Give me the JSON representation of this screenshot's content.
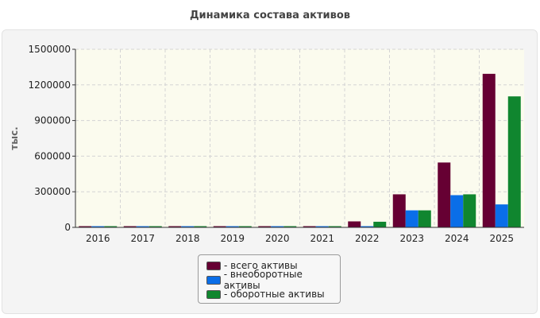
{
  "chart_data": {
    "type": "bar",
    "title": "Динамика состава активов",
    "ylabel": "тыс.",
    "xlabel": "",
    "categories": [
      "2016",
      "2017",
      "2018",
      "2019",
      "2020",
      "2021",
      "2022",
      "2023",
      "2024",
      "2025"
    ],
    "ylim": [
      0,
      1500000
    ],
    "yticks": [
      "1500000",
      "1200000",
      "900000",
      "600000",
      "300000",
      "0"
    ],
    "grid": true,
    "legend_position": "bottom",
    "series": [
      {
        "name": "- всего активы",
        "color": "#660033",
        "values": [
          5000,
          5000,
          5000,
          5000,
          5000,
          5000,
          47000,
          275000,
          543000,
          1290000
        ]
      },
      {
        "name": "- внеоборотные активы",
        "color": "#0a6ee8",
        "values": [
          3000,
          3000,
          3000,
          3000,
          3000,
          3000,
          4000,
          140000,
          268000,
          190000
        ]
      },
      {
        "name": "- оборотные активы",
        "color": "#10862f",
        "values": [
          3000,
          3000,
          3000,
          3000,
          3000,
          3000,
          44000,
          140000,
          275000,
          1100000
        ]
      }
    ]
  }
}
